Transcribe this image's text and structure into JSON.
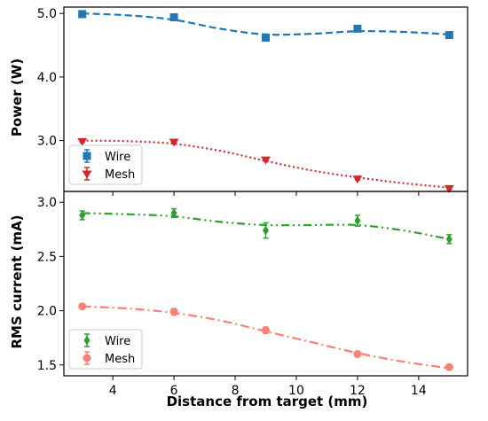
{
  "chart_data": [
    {
      "type": "line",
      "ylabel": "Power (W)",
      "xlim": [
        2.4,
        15.6
      ],
      "ylim": [
        2.2,
        5.1
      ],
      "yticks": [
        3.0,
        4.0,
        5.0
      ],
      "ytick_labels": [
        "3.0",
        "4.0",
        "5.0"
      ],
      "legend_placement": "lower-left",
      "grid": false,
      "series": [
        {
          "name": "Wire",
          "color": "#1f77b4",
          "marker": "square",
          "line_style": "dashed",
          "x": [
            3,
            6,
            9,
            12,
            15
          ],
          "y": [
            4.99,
            4.94,
            4.62,
            4.76,
            4.66
          ],
          "err": [
            0.03,
            0.03,
            0.05,
            0.04,
            0.03
          ],
          "fit_x": [
            3,
            4.5,
            6,
            7.5,
            9,
            10.5,
            12,
            13.5,
            15
          ],
          "fit_y": [
            5.0,
            4.97,
            4.9,
            4.76,
            4.67,
            4.68,
            4.72,
            4.71,
            4.67
          ]
        },
        {
          "name": "Mesh",
          "color": "#d62728",
          "marker": "triangle-down",
          "line_style": "dotted",
          "x": [
            3,
            6,
            9,
            12,
            15
          ],
          "y": [
            2.99,
            2.98,
            2.7,
            2.4,
            2.25
          ],
          "err": [
            0.02,
            0.02,
            0.02,
            0.02,
            0.02
          ],
          "fit_x": [
            3,
            4.5,
            6,
            7.5,
            9,
            10.5,
            12,
            13.5,
            15
          ],
          "fit_y": [
            3.0,
            2.99,
            2.95,
            2.84,
            2.68,
            2.53,
            2.42,
            2.33,
            2.26
          ]
        }
      ]
    },
    {
      "type": "line",
      "xlabel": "Distance from target (mm)",
      "ylabel": "RMS current (mA)",
      "xlim": [
        2.4,
        15.6
      ],
      "ylim": [
        1.4,
        3.1
      ],
      "xticks": [
        4,
        6,
        8,
        10,
        12,
        14
      ],
      "xtick_labels": [
        "4",
        "6",
        "8",
        "10",
        "12",
        "14"
      ],
      "yticks": [
        1.5,
        2.0,
        2.5,
        3.0
      ],
      "ytick_labels": [
        "1.5",
        "2.0",
        "2.5",
        "3.0"
      ],
      "legend_placement": "lower-left",
      "grid": false,
      "series": [
        {
          "name": "Wire",
          "color": "#2ca02c",
          "marker": "diamond",
          "line_style": "dashdotdot",
          "x": [
            3,
            6,
            9,
            12,
            15
          ],
          "y": [
            2.88,
            2.9,
            2.74,
            2.83,
            2.66
          ],
          "err": [
            0.04,
            0.04,
            0.07,
            0.05,
            0.04
          ],
          "fit_x": [
            3,
            4.5,
            6,
            7.5,
            9,
            10.5,
            12,
            13.5,
            15
          ],
          "fit_y": [
            2.9,
            2.89,
            2.87,
            2.82,
            2.79,
            2.79,
            2.79,
            2.74,
            2.66
          ]
        },
        {
          "name": "Mesh",
          "color": "#fa8072",
          "marker": "circle",
          "line_style": "dashdot",
          "x": [
            3,
            6,
            9,
            12,
            15
          ],
          "y": [
            2.04,
            1.99,
            1.82,
            1.6,
            1.48
          ],
          "err": [
            0.02,
            0.03,
            0.03,
            0.02,
            0.02
          ],
          "fit_x": [
            3,
            4.5,
            6,
            7.5,
            9,
            10.5,
            12,
            13.5,
            15
          ],
          "fit_y": [
            2.04,
            2.02,
            1.98,
            1.91,
            1.81,
            1.71,
            1.61,
            1.53,
            1.47
          ]
        }
      ]
    }
  ]
}
